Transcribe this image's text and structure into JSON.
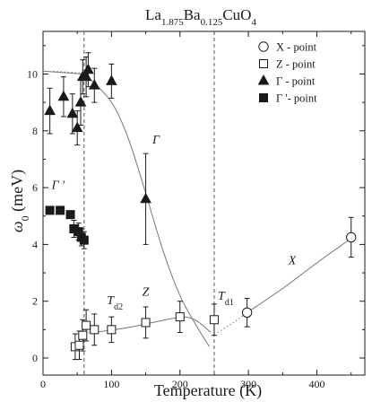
{
  "chart_data": {
    "type": "scatter",
    "title": {
      "base": "La",
      "sub1": "1.875",
      "mid": "Ba",
      "sub2": "0.125",
      "end": "CuO",
      "sub3": "4"
    },
    "xlabel": "Temperature (K)",
    "ylabel": {
      "base": "ω",
      "sub": "0",
      "rest": " (meV)"
    },
    "xlim": [
      0,
      470
    ],
    "ylim": [
      -0.6,
      11.5
    ],
    "xticks": [
      0,
      100,
      200,
      300,
      400
    ],
    "yticks": [
      0,
      2,
      4,
      6,
      8,
      10
    ],
    "grid": false,
    "legend_position": "top-right",
    "vlines": [
      {
        "x": 60,
        "label": "T",
        "sub": "d2"
      },
      {
        "x": 250,
        "label": "T",
        "sub": "d1"
      }
    ],
    "series": [
      {
        "name": "X - point",
        "marker": "open-circle",
        "points": [
          {
            "x": 298,
            "y": 1.6,
            "err": 0.5
          },
          {
            "x": 450,
            "y": 4.25,
            "err": 0.7
          }
        ]
      },
      {
        "name": "Z - point",
        "marker": "open-square",
        "points": [
          {
            "x": 47,
            "y": 0.4,
            "err": 0.45
          },
          {
            "x": 53,
            "y": 0.45,
            "err": 0.5
          },
          {
            "x": 58,
            "y": 0.8,
            "err": 0.55
          },
          {
            "x": 63,
            "y": 1.15,
            "err": 0.55
          },
          {
            "x": 75,
            "y": 1.0,
            "err": 0.55
          },
          {
            "x": 100,
            "y": 1.0,
            "err": 0.45
          },
          {
            "x": 150,
            "y": 1.25,
            "err": 0.55
          },
          {
            "x": 200,
            "y": 1.45,
            "err": 0.55
          },
          {
            "x": 250,
            "y": 1.35,
            "err": 0.55
          }
        ]
      },
      {
        "name": "Γ - point",
        "marker": "filled-triangle",
        "points": [
          {
            "x": 10,
            "y": 8.7,
            "err": 0.8
          },
          {
            "x": 30,
            "y": 9.2,
            "err": 0.7
          },
          {
            "x": 43,
            "y": 8.6,
            "err": 0.7
          },
          {
            "x": 50,
            "y": 8.1,
            "err": 0.6
          },
          {
            "x": 55,
            "y": 9.0,
            "err": 0.8
          },
          {
            "x": 58,
            "y": 9.9,
            "err": 0.6
          },
          {
            "x": 63,
            "y": 9.9,
            "err": 0.7
          },
          {
            "x": 66,
            "y": 10.15,
            "err": 0.6
          },
          {
            "x": 75,
            "y": 9.6,
            "err": 0.6
          },
          {
            "x": 100,
            "y": 9.75,
            "err": 0.6
          },
          {
            "x": 150,
            "y": 5.6,
            "err": 1.6
          }
        ]
      },
      {
        "name": "Γ '- point",
        "marker": "filled-square",
        "points": [
          {
            "x": 10,
            "y": 5.2,
            "err": 0
          },
          {
            "x": 25,
            "y": 5.2,
            "err": 0
          },
          {
            "x": 40,
            "y": 5.05,
            "err": 0
          },
          {
            "x": 45,
            "y": 4.55,
            "err": 0.3
          },
          {
            "x": 52,
            "y": 4.45,
            "err": 0.3
          },
          {
            "x": 56,
            "y": 4.25,
            "err": 0.3
          },
          {
            "x": 60,
            "y": 4.15,
            "err": 0.3
          }
        ]
      }
    ],
    "guide_curves": [
      {
        "style": "solid",
        "points": [
          [
            0,
            10.1
          ],
          [
            30,
            10.05
          ],
          [
            55,
            10.0
          ],
          [
            65,
            9.9
          ],
          [
            100,
            9.0
          ],
          [
            125,
            7.7
          ],
          [
            150,
            5.8
          ],
          [
            175,
            3.8
          ],
          [
            200,
            2.2
          ],
          [
            225,
            1.1
          ],
          [
            243,
            0.4
          ]
        ]
      },
      {
        "style": "dotted",
        "points": [
          [
            15,
            10.1
          ],
          [
            45,
            10.05
          ],
          [
            60,
            10.0
          ]
        ]
      },
      {
        "style": "solid",
        "points": [
          [
            70,
            0.9
          ],
          [
            90,
            0.95
          ],
          [
            130,
            1.1
          ],
          [
            170,
            1.3
          ],
          [
            205,
            1.45
          ],
          [
            225,
            1.3
          ],
          [
            245,
            0.9
          ]
        ]
      },
      {
        "style": "dotted",
        "points": [
          [
            45,
            0.35
          ],
          [
            58,
            0.8
          ],
          [
            70,
            0.9
          ]
        ]
      },
      {
        "style": "dotted",
        "points": [
          [
            255,
            0.9
          ],
          [
            278,
            1.25
          ],
          [
            298,
            1.6
          ]
        ]
      },
      {
        "style": "solid",
        "points": [
          [
            298,
            1.6
          ],
          [
            350,
            2.45
          ],
          [
            400,
            3.35
          ],
          [
            455,
            4.3
          ]
        ]
      }
    ],
    "annotations": [
      {
        "text": "Γ",
        "x": 165,
        "y": 7.55
      },
      {
        "text": "Γ '",
        "x": 22,
        "y": 5.95
      },
      {
        "text": "Z",
        "x": 150,
        "y": 2.2
      },
      {
        "text": "X",
        "x": 364,
        "y": 3.3
      }
    ]
  }
}
